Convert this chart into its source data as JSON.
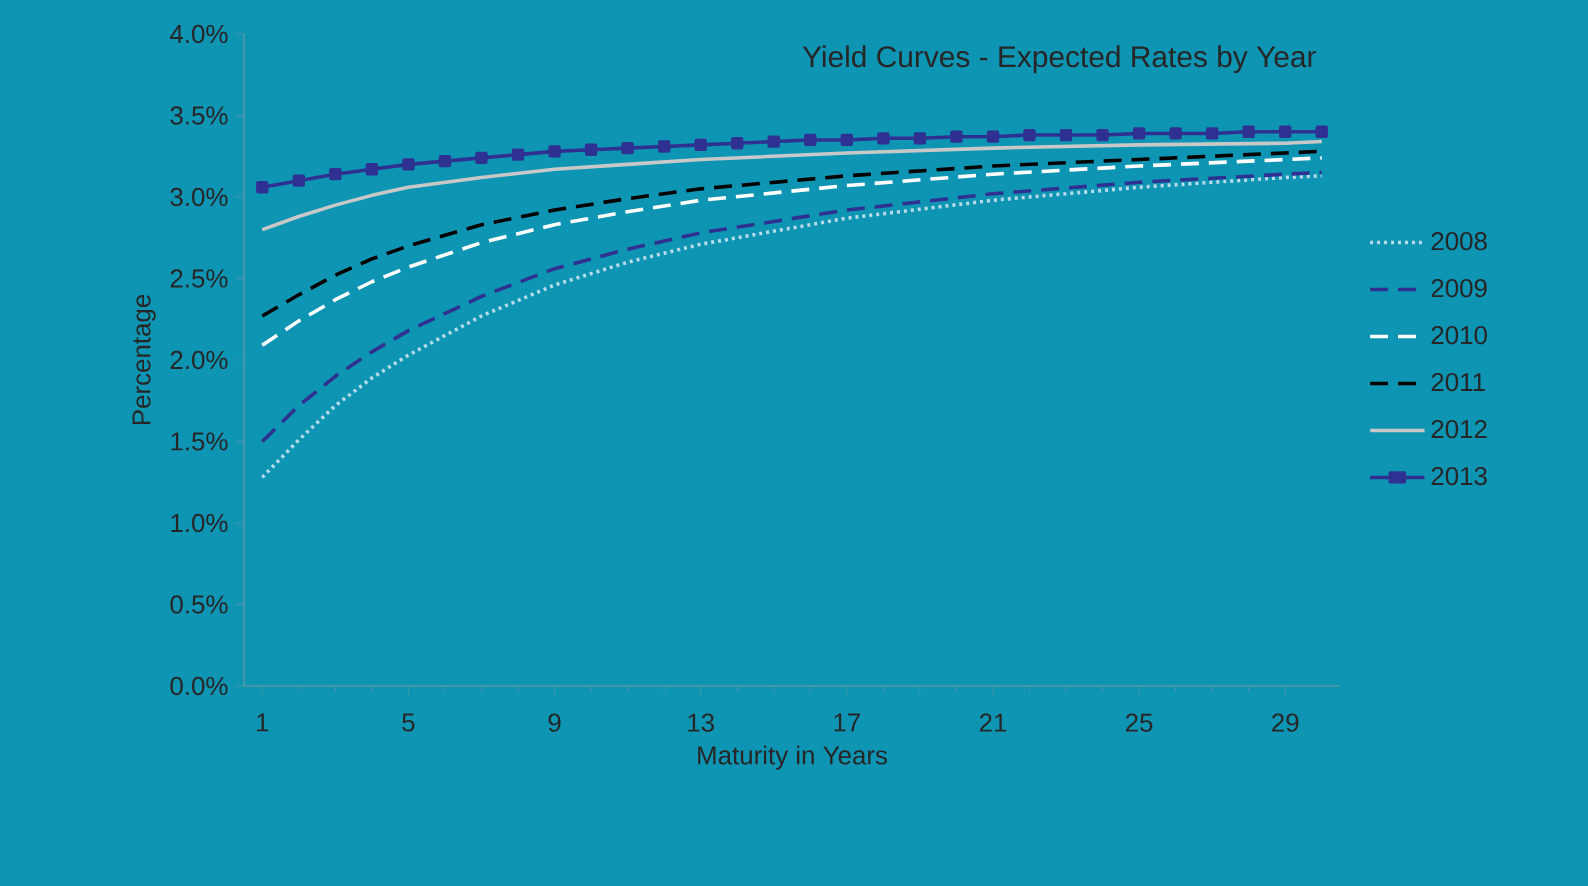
{
  "chart_data": {
    "type": "line",
    "title": "Yield Curves - Expected Rates by Year",
    "xlabel": "Maturity in Years",
    "ylabel": "Percentage",
    "xlim": [
      0.5,
      30.5
    ],
    "xticks": [
      1,
      5,
      9,
      13,
      17,
      21,
      25,
      29
    ],
    "ylim": [
      0,
      4
    ],
    "yticks": [
      {
        "value": 0,
        "label": "0.0%"
      },
      {
        "value": 0.5,
        "label": "0.5%"
      },
      {
        "value": 1,
        "label": "1.0%"
      },
      {
        "value": 1.5,
        "label": "1.5%"
      },
      {
        "value": 2,
        "label": "2.0%"
      },
      {
        "value": 2.5,
        "label": "2.5%"
      },
      {
        "value": 3,
        "label": "3.0%"
      },
      {
        "value": 3.5,
        "label": "3.5%"
      },
      {
        "value": 4,
        "label": "4.0%"
      }
    ],
    "grid": false,
    "legend": "right",
    "series": [
      {
        "name": "2008",
        "color": "#b8dce8",
        "line_style": "dotted",
        "marker": "none",
        "x": [
          1,
          2,
          3,
          4,
          5,
          7,
          9,
          11,
          13,
          17,
          21,
          25,
          29,
          30
        ],
        "values": [
          1.28,
          1.51,
          1.72,
          1.89,
          2.03,
          2.27,
          2.46,
          2.6,
          2.71,
          2.87,
          2.98,
          3.06,
          3.12,
          3.13
        ]
      },
      {
        "name": "2009",
        "color": "#2e3192",
        "line_style": "dashed",
        "marker": "none",
        "x": [
          1,
          2,
          3,
          4,
          5,
          7,
          9,
          11,
          13,
          17,
          21,
          25,
          29,
          30
        ],
        "values": [
          1.5,
          1.72,
          1.9,
          2.05,
          2.18,
          2.39,
          2.56,
          2.68,
          2.78,
          2.92,
          3.02,
          3.09,
          3.14,
          3.15
        ]
      },
      {
        "name": "2010",
        "color": "#ffffff",
        "line_style": "dashed",
        "marker": "none",
        "x": [
          1,
          2,
          3,
          4,
          5,
          7,
          9,
          11,
          13,
          17,
          21,
          25,
          29,
          30
        ],
        "values": [
          2.09,
          2.24,
          2.37,
          2.48,
          2.57,
          2.72,
          2.83,
          2.91,
          2.98,
          3.07,
          3.14,
          3.19,
          3.23,
          3.24
        ]
      },
      {
        "name": "2011",
        "color": "#000000",
        "line_style": "dashed",
        "marker": "none",
        "x": [
          1,
          2,
          3,
          4,
          5,
          7,
          9,
          11,
          13,
          17,
          21,
          25,
          29,
          30
        ],
        "values": [
          2.27,
          2.4,
          2.52,
          2.62,
          2.7,
          2.83,
          2.92,
          2.99,
          3.05,
          3.13,
          3.19,
          3.23,
          3.27,
          3.28
        ]
      },
      {
        "name": "2012",
        "color": "#c8c8c8",
        "line_style": "solid",
        "marker": "none",
        "x": [
          1,
          2,
          3,
          4,
          5,
          7,
          9,
          11,
          13,
          17,
          21,
          25,
          29,
          30
        ],
        "values": [
          2.8,
          2.88,
          2.95,
          3.01,
          3.06,
          3.12,
          3.17,
          3.2,
          3.23,
          3.27,
          3.3,
          3.32,
          3.33,
          3.34
        ]
      },
      {
        "name": "2013",
        "color": "#2e3192",
        "line_style": "solid",
        "marker": "square",
        "x": [
          1,
          2,
          3,
          4,
          5,
          6,
          7,
          8,
          9,
          10,
          11,
          12,
          13,
          14,
          15,
          16,
          17,
          18,
          19,
          20,
          21,
          22,
          23,
          24,
          25,
          26,
          27,
          28,
          29,
          30
        ],
        "values": [
          3.06,
          3.1,
          3.14,
          3.17,
          3.2,
          3.22,
          3.24,
          3.26,
          3.28,
          3.29,
          3.3,
          3.31,
          3.32,
          3.33,
          3.34,
          3.35,
          3.35,
          3.36,
          3.36,
          3.37,
          3.37,
          3.38,
          3.38,
          3.38,
          3.39,
          3.39,
          3.39,
          3.4,
          3.4,
          3.4
        ]
      }
    ]
  }
}
